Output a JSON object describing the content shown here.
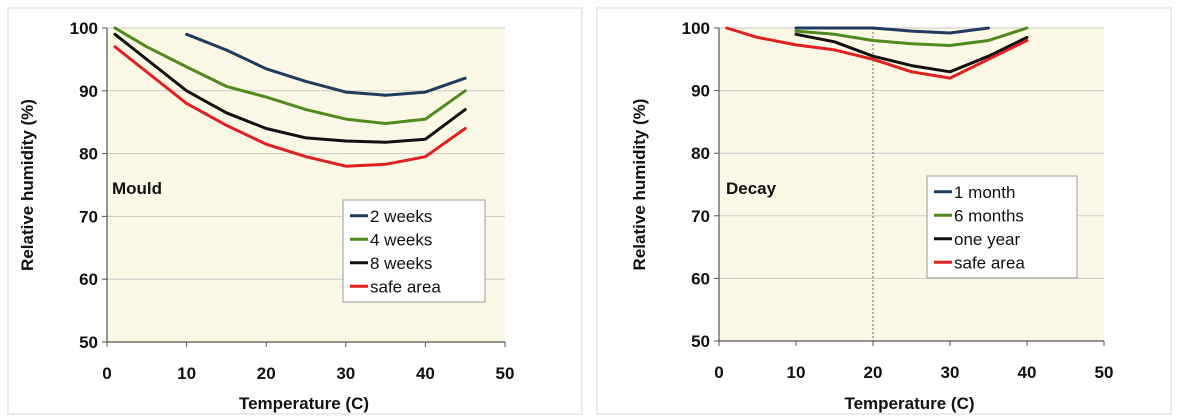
{
  "chart_data": [
    {
      "type": "line",
      "annotation": "Mould",
      "xlabel": "Temperature (C)",
      "ylabel": "Relative humidity (%)",
      "xlim": [
        0,
        50
      ],
      "ylim": [
        50,
        100
      ],
      "xticks": [
        0,
        10,
        20,
        30,
        40,
        50
      ],
      "yticks": [
        50,
        60,
        70,
        80,
        90,
        100
      ],
      "grid": "horizontal",
      "legend_position": "bottom-right",
      "series": [
        {
          "name": "2 weeks",
          "color": "#1f3b5e",
          "x": [
            10,
            15,
            20,
            25,
            30,
            35,
            40,
            45
          ],
          "y": [
            99,
            96.5,
            93.5,
            91.5,
            89.8,
            89.3,
            89.8,
            92
          ]
        },
        {
          "name": "4 weeks",
          "color": "#4f8a1f",
          "x": [
            1,
            5,
            10,
            15,
            20,
            25,
            30,
            35,
            40,
            45
          ],
          "y": [
            100,
            97,
            93.8,
            90.7,
            89,
            87,
            85.5,
            84.8,
            85.5,
            90
          ]
        },
        {
          "name": "8 weeks",
          "color": "#111111",
          "x": [
            1,
            5,
            10,
            15,
            20,
            25,
            30,
            35,
            40,
            45
          ],
          "y": [
            99,
            95,
            90,
            86.5,
            84,
            82.5,
            82,
            81.8,
            82.3,
            87
          ]
        },
        {
          "name": "safe area",
          "color": "#e0201e",
          "x": [
            1,
            5,
            10,
            15,
            20,
            25,
            30,
            35,
            40,
            45
          ],
          "y": [
            97,
            93,
            88,
            84.5,
            81.5,
            79.5,
            78,
            78.3,
            79.5,
            84
          ]
        }
      ]
    },
    {
      "type": "line",
      "annotation": "Decay",
      "xlabel": "Temperature (C)",
      "ylabel": "Relative humidity (%)",
      "xlim": [
        0,
        50
      ],
      "ylim": [
        50,
        100
      ],
      "xticks": [
        0,
        10,
        20,
        30,
        40,
        50
      ],
      "yticks": [
        50,
        60,
        70,
        80,
        90,
        100
      ],
      "grid": "horizontal",
      "legend_position": "center-right",
      "series": [
        {
          "name": "1 month",
          "color": "#1f3b5e",
          "x": [
            10,
            15,
            20,
            25,
            30,
            35
          ],
          "y": [
            100,
            100,
            100,
            99.5,
            99.2,
            100
          ]
        },
        {
          "name": "6 months",
          "color": "#4f8a1f",
          "x": [
            10,
            15,
            20,
            25,
            30,
            35,
            40
          ],
          "y": [
            99.5,
            99,
            98,
            97.5,
            97.2,
            98,
            100
          ]
        },
        {
          "name": "one year",
          "color": "#111111",
          "x": [
            10,
            15,
            20,
            25,
            30,
            35,
            40
          ],
          "y": [
            99,
            97.8,
            95.5,
            94,
            93,
            95.5,
            98.5
          ]
        },
        {
          "name": "safe area",
          "color": "#e0201e",
          "x": [
            1,
            5,
            10,
            15,
            20,
            25,
            30,
            35,
            40
          ],
          "y": [
            100,
            98.5,
            97.3,
            96.5,
            95,
            93,
            92,
            95,
            98
          ]
        }
      ]
    }
  ]
}
